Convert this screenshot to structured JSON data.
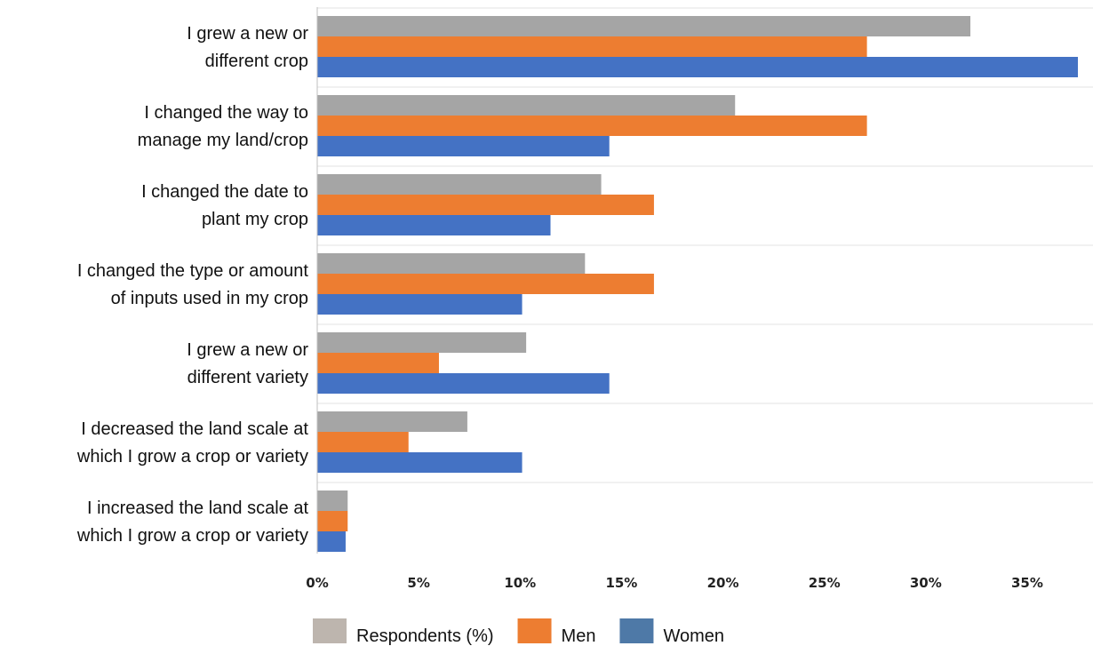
{
  "chart_data": {
    "type": "bar",
    "orientation": "horizontal",
    "categories": [
      [
        "I grew a new or",
        "different crop"
      ],
      [
        "I changed the way to",
        "manage my land/crop"
      ],
      [
        "I changed the date to",
        "plant my crop"
      ],
      [
        "I changed the type or amount",
        "of inputs used in my crop"
      ],
      [
        "I grew a new or",
        "different variety"
      ],
      [
        "I decreased the land scale at",
        "which I grow a crop or variety"
      ],
      [
        "I increased the land scale at",
        "which I grow a crop or variety"
      ]
    ],
    "series": [
      {
        "name": "Respondents (%)",
        "color": "#a5a5a5",
        "legend_color": "#bdb5ae",
        "values": [
          32.2,
          20.6,
          14.0,
          13.2,
          10.3,
          7.4,
          1.5
        ]
      },
      {
        "name": "Men",
        "color": "#ed7d31",
        "legend_color": "#ed7d31",
        "values": [
          27.1,
          27.1,
          16.6,
          16.6,
          6.0,
          4.5,
          1.5
        ]
      },
      {
        "name": "Women",
        "color": "#4472c4",
        "legend_color": "#4e79a7",
        "values": [
          37.5,
          14.4,
          11.5,
          10.1,
          14.4,
          10.1,
          1.4
        ]
      }
    ],
    "xlim": [
      0,
      37.7
    ],
    "xticks": [
      0,
      5,
      10,
      15,
      20,
      25,
      30,
      35
    ],
    "xtick_labels": [
      "0%",
      "5%",
      "10%",
      "15%",
      "20%",
      "25%",
      "30%",
      "35%"
    ],
    "title": "",
    "xlabel": "",
    "ylabel": "",
    "grid": "horizontal separators between categories",
    "legend": "bottom-center"
  }
}
